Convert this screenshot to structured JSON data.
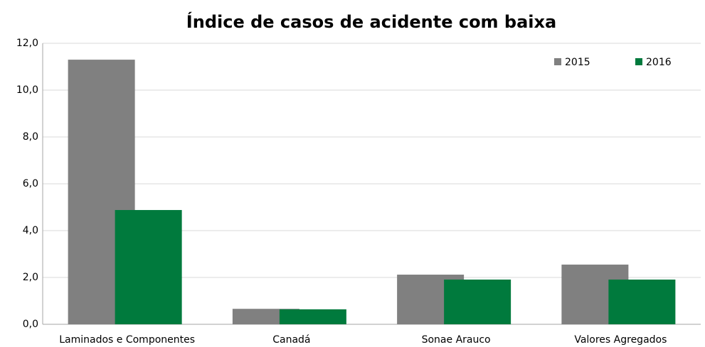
{
  "chart_data": {
    "type": "bar",
    "title": "Índice de casos de acidente com baixa",
    "categories": [
      "Laminados e Componentes",
      "Canadá",
      "Sonae Arauco",
      "Valores Agregados"
    ],
    "series": [
      {
        "name": "2015",
        "color": "#808080",
        "values": [
          11.3,
          0.66,
          2.12,
          2.55
        ]
      },
      {
        "name": "2016",
        "color": "#007a3d",
        "values": [
          4.88,
          0.64,
          1.91,
          1.91
        ]
      }
    ],
    "ylim": [
      0,
      12
    ],
    "yticks": [
      {
        "value": 0,
        "label": "0,0"
      },
      {
        "value": 2,
        "label": "2,0"
      },
      {
        "value": 4,
        "label": "4,0"
      },
      {
        "value": 6,
        "label": "6,0"
      },
      {
        "value": 8,
        "label": "8,0"
      },
      {
        "value": 10,
        "label": "10,0"
      },
      {
        "value": 12,
        "label": "12,0"
      }
    ],
    "grid": true,
    "legend": "top-right"
  }
}
